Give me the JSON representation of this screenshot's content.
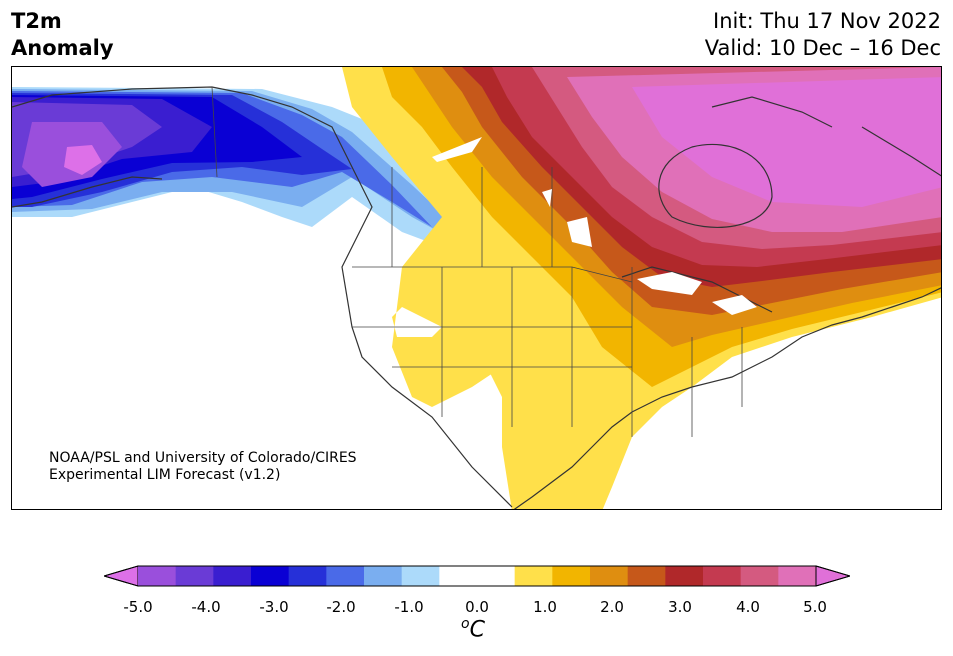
{
  "title": {
    "left_line1": "T2m",
    "left_line2": "Anomaly",
    "init": "Init: Thu 17 Nov 2022",
    "valid": "Valid: 10 Dec – 16 Dec"
  },
  "credit": {
    "line1": "NOAA/PSL and University of Colorado/CIRES",
    "line2": "Experimental LIM Forecast (v1.2)"
  },
  "colorbar": {
    "unit_symbol": "o",
    "unit_letter": "C",
    "ticks": [
      "-5.0",
      "-4.0",
      "-3.0",
      "-2.0",
      "-1.0",
      "0.0",
      "1.0",
      "2.0",
      "3.0",
      "4.0",
      "5.0"
    ],
    "colors": [
      "#9a4fdc",
      "#6a3bd6",
      "#3a1ed0",
      "#0a00d4",
      "#2630d8",
      "#4a6ae8",
      "#7aaef0",
      "#acdafa",
      "#ffffff",
      "#ffffff",
      "#ffe04a",
      "#f2b500",
      "#df8e10",
      "#c6581a",
      "#b0282a",
      "#c43a50",
      "#d45a80",
      "#e070b8"
    ],
    "under_color": "#dd70e8",
    "over_color": "#e070d8"
  },
  "legend_semantics": "anomaly color scale from cold (purple/blue) to warm (yellow/red/pink)"
}
